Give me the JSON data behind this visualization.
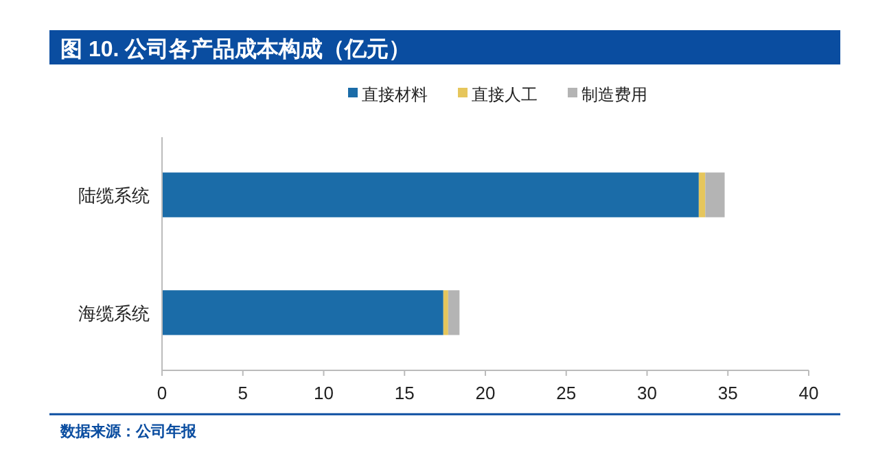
{
  "chart_data": {
    "type": "bar",
    "orientation": "horizontal",
    "stacked": true,
    "title": "图 10. 公司各产品成本构成（亿元）",
    "categories": [
      "陆缆系统",
      "海缆系统"
    ],
    "series": [
      {
        "name": "直接材料",
        "color": "#1b6ca8",
        "values": [
          33.2,
          17.4
        ]
      },
      {
        "name": "直接人工",
        "color": "#e6c65c",
        "values": [
          0.4,
          0.3
        ]
      },
      {
        "name": "制造费用",
        "color": "#b4b4b4",
        "values": [
          1.2,
          0.7
        ]
      }
    ],
    "xlim": [
      0,
      40
    ],
    "xticks": [
      0,
      5,
      10,
      15,
      20,
      25,
      30,
      35,
      40
    ],
    "grid": false,
    "legend": "top",
    "annotations": [
      "数据来源：公司年报"
    ]
  }
}
